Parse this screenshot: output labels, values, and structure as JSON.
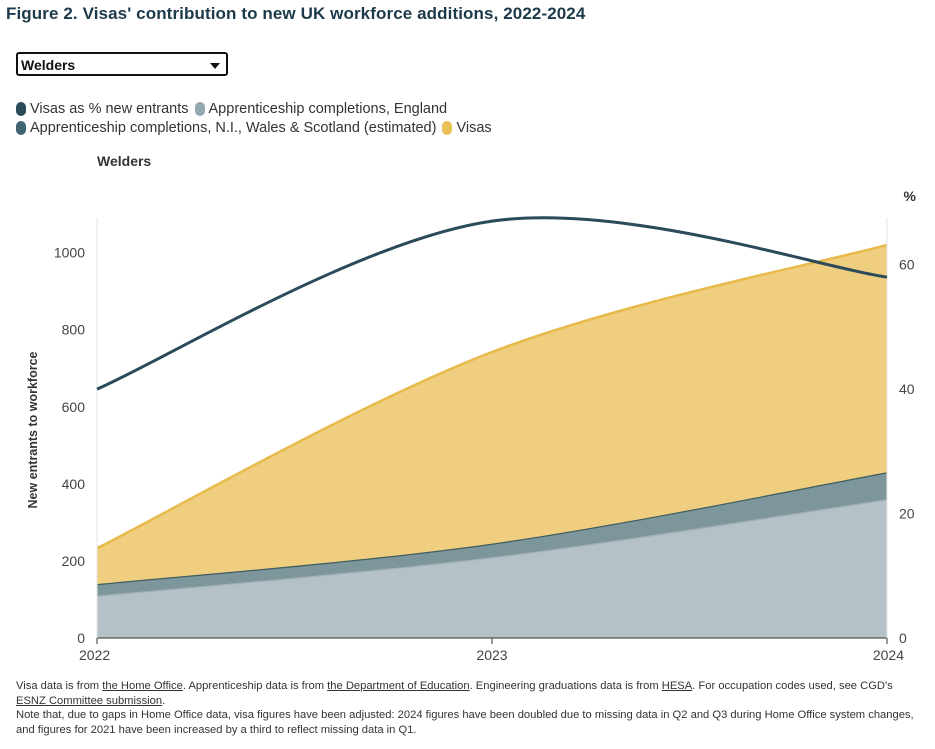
{
  "figure_title": "Figure 2. Visas' contribution to new UK workforce additions, 2022-2024",
  "dropdown": {
    "selected": "Welders"
  },
  "legend": [
    {
      "label": "Visas as % new entrants",
      "color": "#2b4a5a"
    },
    {
      "label": "Apprenticeship completions, England",
      "color": "#95a7ae"
    },
    {
      "label": "Apprenticeship completions, N.I., Wales & Scotland (estimated)",
      "color": "#3f6670"
    },
    {
      "label": "Visas",
      "color": "#e8bf55"
    }
  ],
  "chart_title": "Welders",
  "chart_data": {
    "type": "area",
    "title": "Welders",
    "x": [
      2022,
      2023,
      2024
    ],
    "xticks": [
      "2022",
      "2023",
      "2024"
    ],
    "ylabel": "New entrants to workforce",
    "ylim": [
      0,
      1090
    ],
    "yticks": [
      0,
      200,
      400,
      600,
      800,
      1000
    ],
    "y2label": "%",
    "y2lim": [
      0,
      67.5
    ],
    "y2ticks": [
      0,
      20,
      40,
      60
    ],
    "stacked": true,
    "series": [
      {
        "name": "Apprenticeship completions, England",
        "axis": "left",
        "values": [
          110,
          210,
          360
        ],
        "color": "#b4c1c7",
        "edge": "#a2b0b6"
      },
      {
        "name": "Apprenticeship completions, N.I., Wales & Scotland (estimated)",
        "axis": "left",
        "values": [
          30,
          35,
          70
        ],
        "color": "#7d969b",
        "edge": "#3f5e62"
      },
      {
        "name": "Visas",
        "axis": "left",
        "values": [
          93,
          497,
          590
        ],
        "color": "#efce7f",
        "edge": "#e8b94b"
      },
      {
        "name": "Visas as % new entrants",
        "axis": "right",
        "type": "line",
        "values": [
          40,
          67,
          58
        ],
        "color": "#2b4a5a"
      }
    ]
  },
  "footnotes": {
    "line1": [
      {
        "text": "Visa data is from ",
        "link": false
      },
      {
        "text": "the Home Office",
        "link": true
      },
      {
        "text": ". Apprenticeship data is from ",
        "link": false
      },
      {
        "text": "the Department of Education",
        "link": true
      },
      {
        "text": ". Engineering graduations data is from ",
        "link": false
      },
      {
        "text": "HESA",
        "link": true
      },
      {
        "text": ". For occupation codes used, see CGD's ",
        "link": false
      },
      {
        "text": "ESNZ Committee submission",
        "link": true
      },
      {
        "text": ".",
        "link": false
      }
    ],
    "line2": "Note that, due to gaps in Home Office data, visa figures have been adjusted: 2024 figures have been doubled due to missing data in Q2 and Q3 during Home Office system changes, and figures for 2021 have been increased by a third to reflect missing data in Q1."
  }
}
